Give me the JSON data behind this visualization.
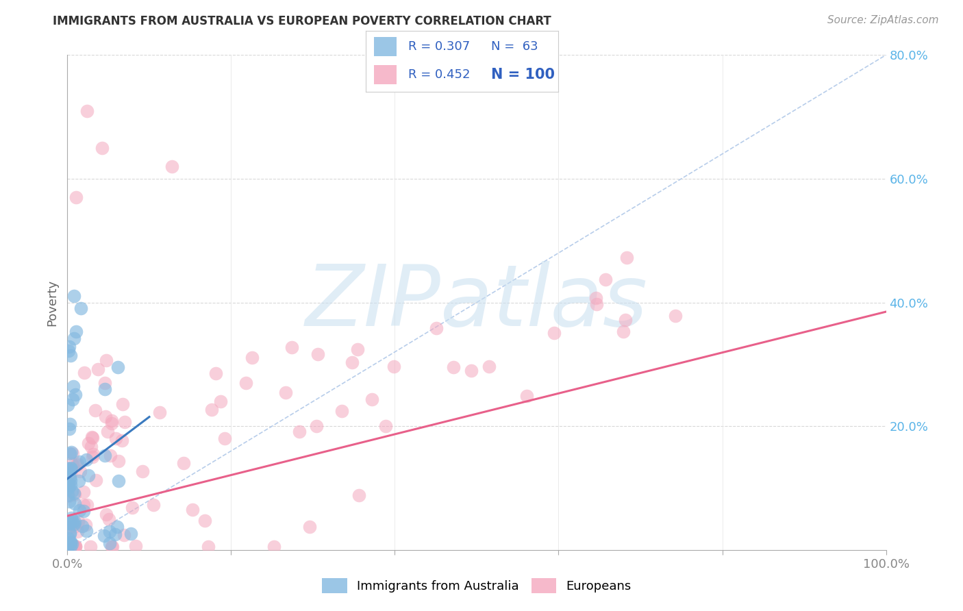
{
  "title": "IMMIGRANTS FROM AUSTRALIA VS EUROPEAN POVERTY CORRELATION CHART",
  "source": "Source: ZipAtlas.com",
  "ylabel": "Poverty",
  "xlim": [
    0,
    1.0
  ],
  "ylim": [
    0,
    0.8
  ],
  "color_australia": "#82b8e0",
  "color_european": "#f4a8be",
  "color_trend_australia": "#3a7abf",
  "color_trend_european": "#e8608a",
  "color_reference_line": "#b0c8e8",
  "color_gridline_h": "#d8d8d8",
  "color_gridline_v": "#e8e8e8",
  "color_ytick": "#5ab4e8",
  "color_xtick": "#888888",
  "watermark_text": "ZIPatlas",
  "watermark_color": "#c8dff0",
  "background_color": "#ffffff",
  "legend_r1": "R = 0.307",
  "legend_n1": "N =  63",
  "legend_r2": "R = 0.452",
  "legend_n2": "N = 100",
  "legend_color_text": "#3060c0",
  "legend_border_color": "#cccccc",
  "aus_trend_x": [
    0.0,
    0.1
  ],
  "aus_trend_y": [
    0.115,
    0.215
  ],
  "eur_trend_x": [
    0.0,
    1.0
  ],
  "eur_trend_y": [
    0.055,
    0.385
  ],
  "ref_line_x": [
    0.0,
    1.0
  ],
  "ref_line_y": [
    0.0,
    0.8
  ]
}
